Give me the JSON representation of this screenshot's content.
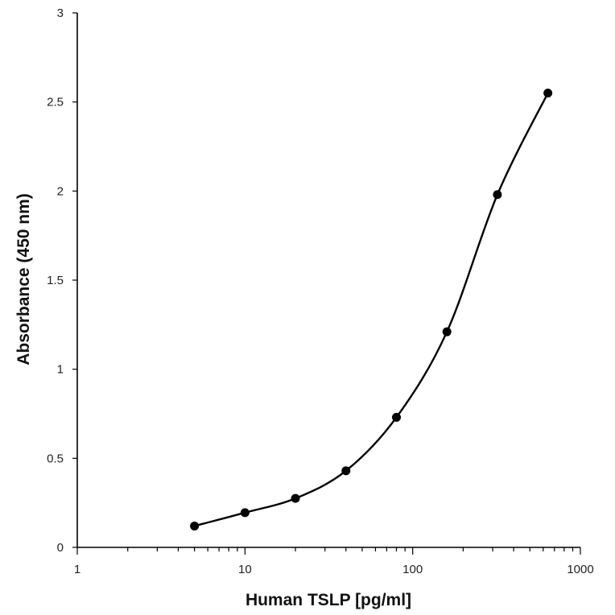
{
  "chart_data": {
    "type": "scatter",
    "title": "",
    "xlabel": "Human TSLP [pg/ml]",
    "ylabel": "Absorbance (450 nm)",
    "x_scale": "log",
    "xlim": [
      1,
      1000
    ],
    "ylim": [
      0,
      3
    ],
    "x_ticks": [
      1,
      10,
      100,
      1000
    ],
    "x_tick_labels": [
      "1",
      "10",
      "100",
      "1000"
    ],
    "y_ticks": [
      0,
      0.5,
      1,
      1.5,
      2,
      2.5,
      3
    ],
    "y_tick_labels": [
      "0",
      "0.5",
      "1",
      "1.5",
      "2",
      "2.5",
      "3"
    ],
    "grid": false,
    "legend": "none",
    "series": [
      {
        "x": [
          5,
          10,
          20,
          40,
          80,
          160,
          320,
          640
        ],
        "y": [
          0.12,
          0.195,
          0.275,
          0.43,
          0.73,
          1.21,
          1.98,
          2.55
        ],
        "color": "#000000",
        "marker": "circle",
        "line": "smooth"
      }
    ]
  }
}
